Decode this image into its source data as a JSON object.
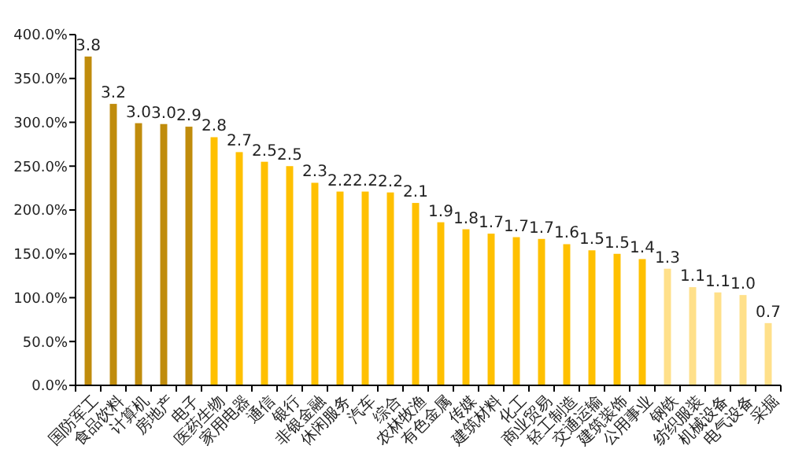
{
  "chart_data": {
    "type": "bar",
    "categories": [
      "国防军工",
      "食品饮料",
      "计算机",
      "房地产",
      "电子",
      "医药生物",
      "家用电器",
      "通信",
      "银行",
      "非银金融",
      "休闲服务",
      "汽车",
      "综合",
      "农林牧渔",
      "有色金属",
      "传媒",
      "建筑材料",
      "化工",
      "商业贸易",
      "轻工制造",
      "交通运输",
      "建筑装饰",
      "公用事业",
      "钢铁",
      "纺织服装",
      "机械设备",
      "电气设备",
      "采掘"
    ],
    "values": [
      3.75,
      3.21,
      2.99,
      2.98,
      2.95,
      2.83,
      2.66,
      2.55,
      2.5,
      2.31,
      2.21,
      2.21,
      2.2,
      2.08,
      1.86,
      1.78,
      1.73,
      1.69,
      1.67,
      1.61,
      1.54,
      1.5,
      1.44,
      1.33,
      1.12,
      1.06,
      1.03,
      0.71
    ],
    "value_labels": [
      "3.8",
      "3.2",
      "3.0",
      "3.0",
      "2.9",
      "2.8",
      "2.7",
      "2.5",
      "2.5",
      "2.3",
      "2.2",
      "2.2",
      "2.2",
      "2.1",
      "1.9",
      "1.8",
      "1.7",
      "1.7",
      "1.7",
      "1.6",
      "1.5",
      "1.5",
      "1.4",
      "1.3",
      "1.1",
      "1.1",
      "1.0",
      "0.7"
    ],
    "colors": [
      "#c08c0c",
      "#c08c0c",
      "#c08c0c",
      "#c08c0c",
      "#c08c0c",
      "#ffc000",
      "#ffc000",
      "#ffc000",
      "#ffc000",
      "#ffc000",
      "#ffc000",
      "#ffc000",
      "#ffc000",
      "#ffc000",
      "#ffc000",
      "#ffc000",
      "#ffc000",
      "#ffc000",
      "#ffc000",
      "#ffc000",
      "#ffc000",
      "#ffc000",
      "#ffc000",
      "#ffe08a",
      "#ffe08a",
      "#ffe08a",
      "#ffe08a",
      "#ffe08a"
    ],
    "ylim": [
      0,
      4
    ],
    "yticks": [
      {
        "value": 0,
        "label": "0.0%"
      },
      {
        "value": 0.5,
        "label": "50.0%"
      },
      {
        "value": 1,
        "label": "100.0%"
      },
      {
        "value": 1.5,
        "label": "150.0%"
      },
      {
        "value": 2,
        "label": "200.0%"
      },
      {
        "value": 2.5,
        "label": "250.0%"
      },
      {
        "value": 3,
        "label": "300.0%"
      },
      {
        "value": 3.5,
        "label": "350.0%"
      },
      {
        "value": 4,
        "label": "400.0%"
      }
    ],
    "grid": false
  }
}
